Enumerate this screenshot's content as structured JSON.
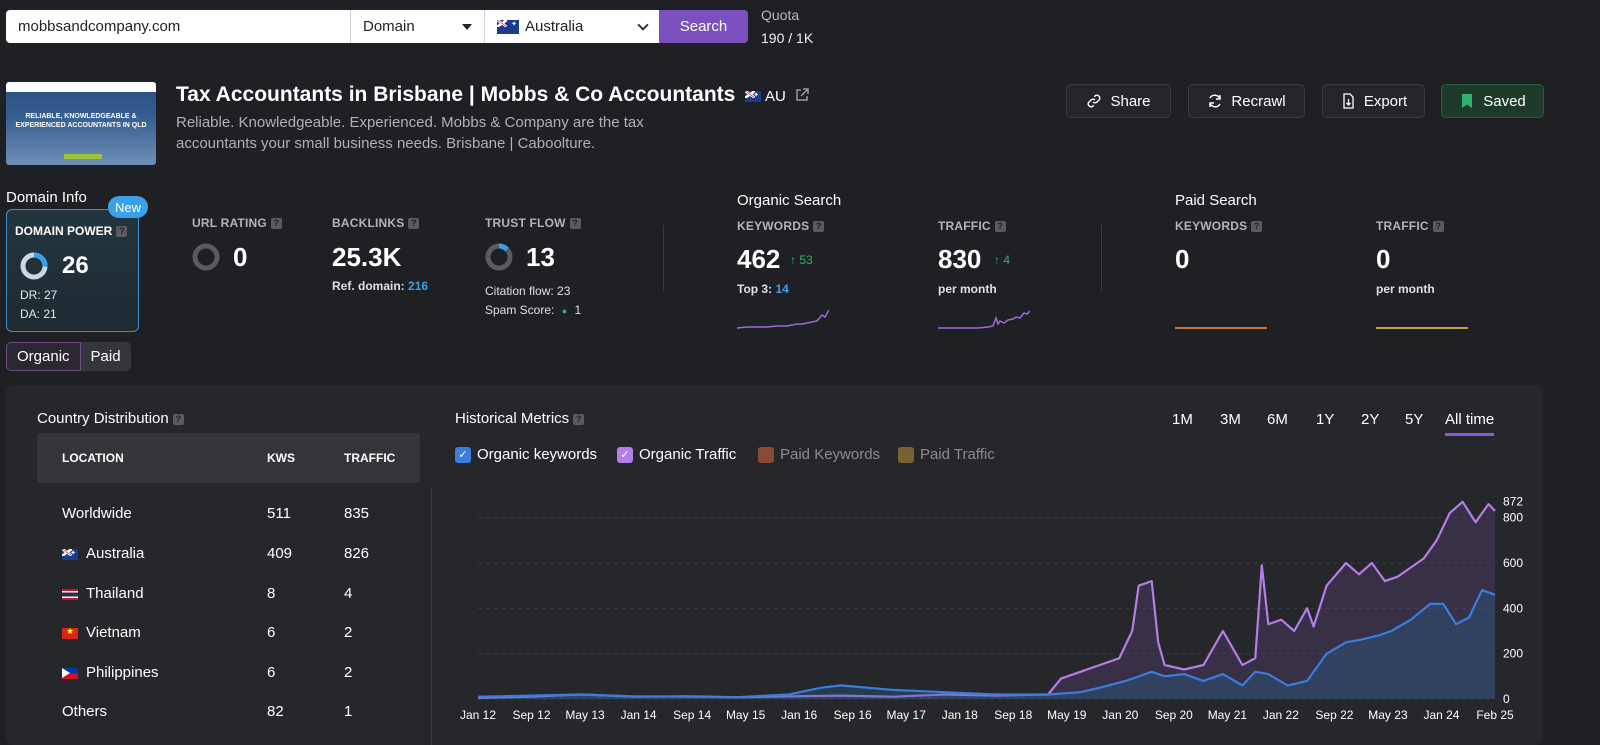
{
  "search": {
    "value": "mobbsandcompany.com",
    "mode": "Domain",
    "country": "Australia",
    "button": "Search"
  },
  "quota": {
    "label": "Quota",
    "value": "190 / 1K"
  },
  "site": {
    "thumb_text": "RELIABLE, KNOWLEDGEABLE & EXPERIENCED ACCOUNTANTS IN QLD",
    "title": "Tax Accountants in Brisbane | Mobbs & Co Accountants",
    "country_code": "AU",
    "description": "Reliable. Knowledgeable. Experienced. Mobbs & Company are the tax accountants your small business needs. Brisbane | Caboolture."
  },
  "actions": {
    "share": "Share",
    "recrawl": "Recrawl",
    "export": "Export",
    "saved": "Saved"
  },
  "domain_info": {
    "title": "Domain Info",
    "badge": "New",
    "power_label": "DOMAIN POWER",
    "power": "26",
    "dr": "DR: 27",
    "da": "DA: 21",
    "power_fraction": 0.26
  },
  "toggle": {
    "organic": "Organic",
    "paid": "Paid"
  },
  "metrics": {
    "url_rating": {
      "label": "URL RATING",
      "value": "0"
    },
    "backlinks": {
      "label": "BACKLINKS",
      "value": "25.3K",
      "ref_label": "Ref. domain:",
      "ref_value": "216"
    },
    "trust_flow": {
      "label": "TRUST FLOW",
      "value": "13",
      "citation": "Citation flow: 23",
      "spam_label": "Spam Score:",
      "spam_value": "1",
      "fraction": 0.13
    }
  },
  "organic": {
    "title": "Organic Search",
    "keywords": {
      "label": "KEYWORDS",
      "value": "462",
      "delta": "53",
      "sub_label": "Top 3:",
      "sub_value": "14"
    },
    "traffic": {
      "label": "TRAFFIC",
      "value": "830",
      "delta": "4",
      "sub": "per month"
    }
  },
  "paid": {
    "title": "Paid Search",
    "keywords": {
      "label": "KEYWORDS",
      "value": "0"
    },
    "traffic": {
      "label": "TRAFFIC",
      "value": "0",
      "sub": "per month"
    }
  },
  "country_distribution": {
    "title": "Country Distribution",
    "columns": [
      "LOCATION",
      "KWS",
      "TRAFFIC"
    ],
    "rows": [
      {
        "location": "Worldwide",
        "kws": "511",
        "traffic": "835"
      },
      {
        "location": "Australia",
        "kws": "409",
        "traffic": "826"
      },
      {
        "location": "Thailand",
        "kws": "8",
        "traffic": "4"
      },
      {
        "location": "Vietnam",
        "kws": "6",
        "traffic": "2"
      },
      {
        "location": "Philippines",
        "kws": "6",
        "traffic": "2"
      },
      {
        "location": "Others",
        "kws": "82",
        "traffic": "1"
      }
    ]
  },
  "historical": {
    "title": "Historical Metrics",
    "ranges": [
      "1M",
      "3M",
      "6M",
      "1Y",
      "2Y",
      "5Y",
      "All time"
    ],
    "active_range": "All time",
    "legend": [
      "Organic keywords",
      "Organic Traffic",
      "Paid Keywords",
      "Paid Traffic"
    ]
  },
  "colors": {
    "accent": "#7c4fbf",
    "keywords": "#3b7ddd",
    "traffic": "#b47ee8",
    "paid_kw": "#8b4a35",
    "paid_traffic": "#7a6035"
  },
  "chart_data": {
    "type": "area",
    "x_ticks": [
      "Jan 12",
      "Sep 12",
      "May 13",
      "Jan 14",
      "Sep 14",
      "May 15",
      "Jan 16",
      "Sep 16",
      "May 17",
      "Jan 18",
      "Sep 18",
      "May 19",
      "Jan 20",
      "Sep 20",
      "May 21",
      "Jan 22",
      "Sep 22",
      "May 23",
      "Jan 24",
      "Feb 25"
    ],
    "y_ticks": [
      0,
      200,
      400,
      600,
      800
    ],
    "y_max_label": "872",
    "ylim": [
      0,
      900
    ],
    "series": [
      {
        "name": "Organic Traffic",
        "x": [
          "2012-01",
          "2012-09",
          "2013-05",
          "2014-01",
          "2014-09",
          "2015-05",
          "2016-01",
          "2016-09",
          "2017-05",
          "2018-01",
          "2018-09",
          "2019-05",
          "2019-07",
          "2019-10",
          "2020-01",
          "2020-04",
          "2020-06",
          "2020-07",
          "2020-09",
          "2020-10",
          "2020-11",
          "2021-02",
          "2021-05",
          "2021-08",
          "2021-11",
          "2022-01",
          "2022-02",
          "2022-03",
          "2022-05",
          "2022-07",
          "2022-09",
          "2022-10",
          "2022-12",
          "2023-03",
          "2023-05",
          "2023-07",
          "2023-09",
          "2023-11",
          "2024-01",
          "2024-03",
          "2024-05",
          "2024-07",
          "2024-09",
          "2024-11",
          "2025-01",
          "2025-02"
        ],
        "values": [
          5,
          10,
          20,
          10,
          12,
          8,
          12,
          15,
          10,
          20,
          15,
          20,
          90,
          120,
          150,
          180,
          300,
          500,
          520,
          250,
          150,
          130,
          150,
          300,
          150,
          180,
          590,
          330,
          350,
          300,
          400,
          320,
          500,
          600,
          550,
          600,
          520,
          540,
          580,
          620,
          700,
          820,
          870,
          780,
          860,
          830
        ]
      },
      {
        "name": "Organic keywords",
        "x": [
          "2012-01",
          "2012-09",
          "2013-05",
          "2014-01",
          "2014-09",
          "2015-05",
          "2016-01",
          "2016-06",
          "2016-09",
          "2017-05",
          "2018-01",
          "2018-09",
          "2019-05",
          "2019-10",
          "2020-01",
          "2020-05",
          "2020-09",
          "2020-11",
          "2021-02",
          "2021-05",
          "2021-08",
          "2021-11",
          "2022-01",
          "2022-03",
          "2022-06",
          "2022-09",
          "2022-12",
          "2023-03",
          "2023-05",
          "2023-08",
          "2023-10",
          "2024-01",
          "2024-04",
          "2024-06",
          "2024-08",
          "2024-10",
          "2024-12",
          "2025-02"
        ],
        "values": [
          10,
          15,
          20,
          12,
          10,
          8,
          20,
          50,
          60,
          40,
          30,
          20,
          20,
          30,
          50,
          80,
          120,
          100,
          110,
          80,
          110,
          60,
          120,
          110,
          60,
          80,
          200,
          250,
          260,
          280,
          300,
          350,
          420,
          420,
          330,
          360,
          480,
          460
        ]
      }
    ]
  }
}
